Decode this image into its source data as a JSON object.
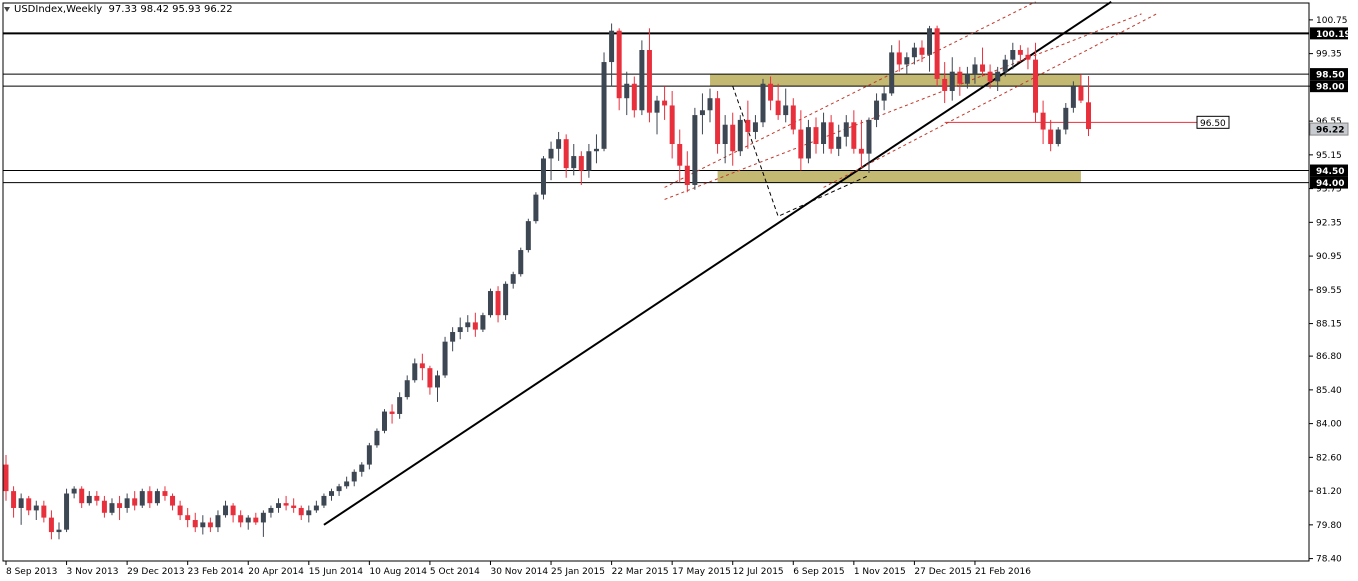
{
  "header": {
    "symbol": "USDIndex,Weekly",
    "ohlc": "97.33 98.42 95.93 96.22"
  },
  "colors": {
    "bull": "#3d4753",
    "bear": "#e8303d",
    "zone": "#b8ad5a",
    "frame": "#000000",
    "channel": "#c0392b"
  },
  "chart_data": {
    "type": "candlestick",
    "title": "USDIndex,Weekly",
    "ylim": [
      78.3,
      101.45
    ],
    "y_ticks": [
      "100.75",
      "99.35",
      "98.00",
      "96.55",
      "95.15",
      "93.75",
      "92.35",
      "90.95",
      "89.55",
      "88.15",
      "86.80",
      "85.40",
      "84.00",
      "82.60",
      "81.20",
      "79.80",
      "78.40"
    ],
    "x_ticks": [
      "8 Sep 2013",
      "3 Nov 2013",
      "29 Dec 2013",
      "23 Feb 2014",
      "20 Apr 2014",
      "15 Jun 2014",
      "10 Aug 2014",
      "5 Oct 2014",
      "30 Nov 2014",
      "25 Jan 2015",
      "22 Mar 2015",
      "17 May 2015",
      "12 Jul 2015",
      "6 Sep 2015",
      "1 Nov 2015",
      "27 Dec 2015",
      "21 Feb 2016"
    ],
    "x_tick_index": [
      0,
      8,
      16,
      24,
      32,
      40,
      48,
      56,
      64,
      72,
      80,
      88,
      96,
      104,
      112,
      120,
      128
    ],
    "levels": [
      {
        "value": 100.19,
        "label": "100.19"
      },
      {
        "value": 98.5,
        "label": "98.50"
      },
      {
        "value": 98.0,
        "label": "98.00"
      },
      {
        "value": 94.5,
        "label": "94.50"
      },
      {
        "value": 94.0,
        "label": "94.00"
      }
    ],
    "current_price": {
      "value": 96.22,
      "label": "96.22"
    },
    "target": {
      "value": 96.5,
      "label": "96.50"
    },
    "zones": [
      {
        "from_index": 93,
        "to_index": 142,
        "low": 98.0,
        "high": 98.5
      },
      {
        "from_index": 94,
        "to_index": 142,
        "low": 94.0,
        "high": 94.5
      }
    ],
    "trendline": {
      "start": [
        42,
        79.8
      ],
      "end": [
        146,
        101.5
      ]
    },
    "channel": {
      "lines": [
        {
          "start": [
            87,
            93.8
          ],
          "end": [
            136,
            101.5
          ]
        },
        {
          "start": [
            87,
            93.3
          ],
          "end": [
            150,
            101.0
          ]
        },
        {
          "start": [
            108,
            93.8
          ],
          "end": [
            152,
            101.0
          ]
        }
      ]
    },
    "dashed_path": [
      [
        96,
        98.0
      ],
      [
        102,
        92.6
      ],
      [
        114,
        94.3
      ]
    ],
    "candles": [
      [
        82.3,
        82.7,
        80.8,
        81.2
      ],
      [
        81.2,
        81.4,
        80.1,
        80.5
      ],
      [
        80.5,
        81.1,
        79.8,
        80.9
      ],
      [
        80.9,
        81.0,
        80.2,
        80.4
      ],
      [
        80.4,
        80.8,
        80.0,
        80.6
      ],
      [
        80.6,
        80.8,
        79.9,
        80.1
      ],
      [
        80.1,
        80.4,
        79.2,
        79.5
      ],
      [
        79.5,
        79.9,
        79.2,
        79.6
      ],
      [
        79.6,
        81.3,
        79.5,
        81.1
      ],
      [
        81.1,
        81.4,
        80.9,
        81.3
      ],
      [
        81.3,
        81.4,
        80.5,
        80.7
      ],
      [
        80.7,
        81.2,
        80.6,
        81.0
      ],
      [
        81.0,
        81.2,
        80.6,
        80.8
      ],
      [
        80.8,
        81.0,
        80.1,
        80.3
      ],
      [
        80.3,
        80.9,
        80.2,
        80.7
      ],
      [
        80.7,
        81.0,
        80.0,
        80.5
      ],
      [
        80.5,
        81.1,
        80.3,
        80.9
      ],
      [
        80.9,
        81.2,
        80.4,
        80.6
      ],
      [
        80.6,
        81.3,
        80.5,
        81.2
      ],
      [
        81.2,
        81.4,
        80.5,
        80.7
      ],
      [
        80.7,
        81.3,
        80.6,
        81.2
      ],
      [
        81.2,
        81.4,
        80.8,
        81.0
      ],
      [
        81.0,
        81.1,
        80.4,
        80.6
      ],
      [
        80.6,
        80.8,
        80.0,
        80.2
      ],
      [
        80.2,
        80.5,
        79.7,
        80.0
      ],
      [
        80.0,
        80.3,
        79.5,
        79.7
      ],
      [
        79.7,
        80.2,
        79.4,
        79.9
      ],
      [
        79.9,
        80.1,
        79.5,
        79.7
      ],
      [
        79.7,
        80.4,
        79.5,
        80.2
      ],
      [
        80.2,
        80.8,
        80.1,
        80.6
      ],
      [
        80.6,
        80.7,
        79.9,
        80.2
      ],
      [
        80.2,
        80.4,
        79.7,
        79.9
      ],
      [
        79.9,
        80.2,
        79.6,
        80.1
      ],
      [
        80.1,
        80.3,
        79.8,
        79.9
      ],
      [
        79.9,
        80.4,
        79.3,
        80.3
      ],
      [
        80.3,
        80.6,
        80.1,
        80.5
      ],
      [
        80.5,
        80.9,
        80.3,
        80.7
      ],
      [
        80.7,
        81.0,
        80.4,
        80.6
      ],
      [
        80.6,
        80.9,
        80.3,
        80.5
      ],
      [
        80.5,
        80.6,
        80.0,
        80.2
      ],
      [
        80.2,
        80.6,
        79.9,
        80.4
      ],
      [
        80.4,
        80.8,
        80.3,
        80.6
      ],
      [
        80.6,
        81.1,
        80.5,
        81.0
      ],
      [
        81.0,
        81.3,
        80.8,
        81.2
      ],
      [
        81.2,
        81.5,
        81.0,
        81.4
      ],
      [
        81.4,
        81.8,
        81.3,
        81.6
      ],
      [
        81.6,
        82.1,
        81.4,
        82.0
      ],
      [
        82.0,
        82.4,
        81.8,
        82.3
      ],
      [
        82.3,
        83.2,
        82.1,
        83.1
      ],
      [
        83.1,
        83.8,
        83.0,
        83.7
      ],
      [
        83.7,
        84.6,
        83.6,
        84.5
      ],
      [
        84.5,
        84.8,
        84.0,
        84.4
      ],
      [
        84.4,
        85.3,
        84.2,
        85.1
      ],
      [
        85.1,
        86.0,
        85.0,
        85.8
      ],
      [
        85.8,
        86.7,
        85.7,
        86.5
      ],
      [
        86.5,
        86.9,
        85.8,
        86.3
      ],
      [
        86.3,
        86.4,
        85.2,
        85.5
      ],
      [
        85.5,
        86.2,
        84.9,
        86.0
      ],
      [
        86.0,
        87.6,
        85.9,
        87.4
      ],
      [
        87.4,
        88.0,
        87.0,
        87.8
      ],
      [
        87.8,
        88.4,
        87.5,
        88.0
      ],
      [
        88.0,
        88.5,
        87.8,
        88.2
      ],
      [
        88.2,
        88.6,
        87.6,
        87.9
      ],
      [
        87.9,
        88.6,
        87.8,
        88.5
      ],
      [
        88.5,
        89.6,
        88.4,
        89.5
      ],
      [
        89.5,
        89.7,
        88.2,
        88.5
      ],
      [
        88.5,
        89.9,
        88.3,
        89.8
      ],
      [
        89.8,
        90.3,
        89.6,
        90.2
      ],
      [
        90.2,
        91.3,
        90.1,
        91.2
      ],
      [
        91.2,
        92.5,
        91.1,
        92.4
      ],
      [
        92.4,
        93.6,
        92.3,
        93.5
      ],
      [
        93.5,
        95.1,
        93.3,
        95.0
      ],
      [
        95.0,
        95.7,
        94.1,
        95.4
      ],
      [
        95.4,
        96.1,
        94.9,
        95.8
      ],
      [
        95.8,
        96.0,
        94.2,
        94.6
      ],
      [
        94.6,
        95.6,
        94.3,
        95.1
      ],
      [
        95.1,
        95.3,
        93.9,
        94.5
      ],
      [
        94.5,
        95.6,
        94.2,
        95.3
      ],
      [
        95.3,
        96.0,
        94.8,
        95.4
      ],
      [
        95.4,
        99.4,
        95.3,
        99.0
      ],
      [
        99.0,
        100.6,
        98.0,
        100.3
      ],
      [
        100.3,
        100.4,
        97.0,
        97.5
      ],
      [
        97.5,
        98.6,
        96.8,
        98.1
      ],
      [
        98.1,
        98.4,
        96.7,
        97.0
      ],
      [
        97.0,
        99.9,
        96.8,
        99.5
      ],
      [
        99.5,
        100.4,
        96.5,
        96.9
      ],
      [
        96.9,
        97.6,
        96.0,
        97.4
      ],
      [
        97.4,
        98.0,
        96.6,
        97.2
      ],
      [
        97.2,
        97.8,
        95.0,
        95.6
      ],
      [
        95.6,
        96.2,
        94.0,
        94.7
      ],
      [
        94.7,
        95.3,
        93.6,
        93.9
      ],
      [
        93.9,
        97.1,
        93.7,
        96.8
      ],
      [
        96.8,
        97.7,
        96.0,
        97.0
      ],
      [
        97.0,
        97.9,
        96.5,
        97.5
      ],
      [
        97.5,
        97.8,
        95.2,
        95.6
      ],
      [
        95.6,
        96.8,
        94.8,
        96.4
      ],
      [
        96.4,
        96.9,
        94.7,
        95.3
      ],
      [
        95.3,
        96.8,
        95.1,
        96.6
      ],
      [
        96.6,
        97.4,
        95.4,
        96.1
      ],
      [
        96.1,
        96.8,
        95.8,
        96.5
      ],
      [
        96.5,
        98.3,
        96.3,
        98.1
      ],
      [
        98.1,
        98.4,
        97.0,
        97.4
      ],
      [
        97.4,
        98.1,
        96.6,
        96.8
      ],
      [
        96.8,
        97.9,
        96.5,
        97.2
      ],
      [
        97.2,
        97.5,
        96.0,
        96.2
      ],
      [
        96.2,
        97.0,
        94.5,
        95.0
      ],
      [
        95.0,
        96.6,
        94.8,
        96.3
      ],
      [
        96.3,
        96.7,
        95.2,
        95.6
      ],
      [
        95.6,
        96.9,
        95.2,
        96.5
      ],
      [
        96.5,
        96.8,
        95.2,
        95.4
      ],
      [
        95.4,
        96.4,
        95.1,
        95.9
      ],
      [
        95.9,
        96.8,
        95.5,
        96.5
      ],
      [
        96.5,
        97.0,
        95.2,
        95.4
      ],
      [
        95.4,
        96.6,
        94.6,
        95.2
      ],
      [
        95.2,
        96.7,
        94.4,
        96.6
      ],
      [
        96.6,
        97.7,
        96.3,
        97.4
      ],
      [
        97.4,
        98.0,
        97.0,
        97.7
      ],
      [
        97.7,
        99.7,
        97.6,
        99.4
      ],
      [
        99.4,
        99.9,
        98.6,
        98.9
      ],
      [
        98.9,
        99.4,
        98.5,
        99.2
      ],
      [
        99.2,
        99.8,
        98.9,
        99.6
      ],
      [
        99.6,
        99.9,
        99.0,
        99.3
      ],
      [
        99.3,
        100.5,
        98.6,
        100.4
      ],
      [
        100.4,
        100.51,
        98.0,
        98.3
      ],
      [
        98.3,
        99.0,
        97.3,
        97.8
      ],
      [
        97.8,
        99.2,
        97.4,
        98.6
      ],
      [
        98.6,
        98.8,
        97.6,
        98.1
      ],
      [
        98.1,
        98.8,
        97.9,
        98.5
      ],
      [
        98.5,
        99.2,
        98.1,
        98.9
      ],
      [
        98.9,
        99.6,
        98.4,
        98.6
      ],
      [
        98.6,
        98.9,
        97.9,
        98.2
      ],
      [
        98.2,
        98.8,
        97.8,
        98.6
      ],
      [
        98.6,
        99.3,
        98.4,
        99.1
      ],
      [
        99.1,
        99.8,
        98.7,
        99.5
      ],
      [
        99.5,
        99.7,
        99.0,
        99.3
      ],
      [
        99.3,
        99.6,
        98.7,
        99.1
      ],
      [
        99.1,
        99.8,
        96.5,
        96.9
      ],
      [
        96.9,
        97.4,
        95.6,
        96.2
      ],
      [
        96.2,
        96.6,
        95.3,
        95.6
      ],
      [
        95.6,
        96.3,
        95.5,
        96.2
      ],
      [
        96.2,
        97.3,
        96.0,
        97.1
      ],
      [
        97.1,
        98.2,
        96.9,
        98.0
      ],
      [
        98.0,
        98.5,
        97.3,
        97.4
      ],
      [
        97.33,
        98.42,
        95.93,
        96.22
      ]
    ]
  }
}
